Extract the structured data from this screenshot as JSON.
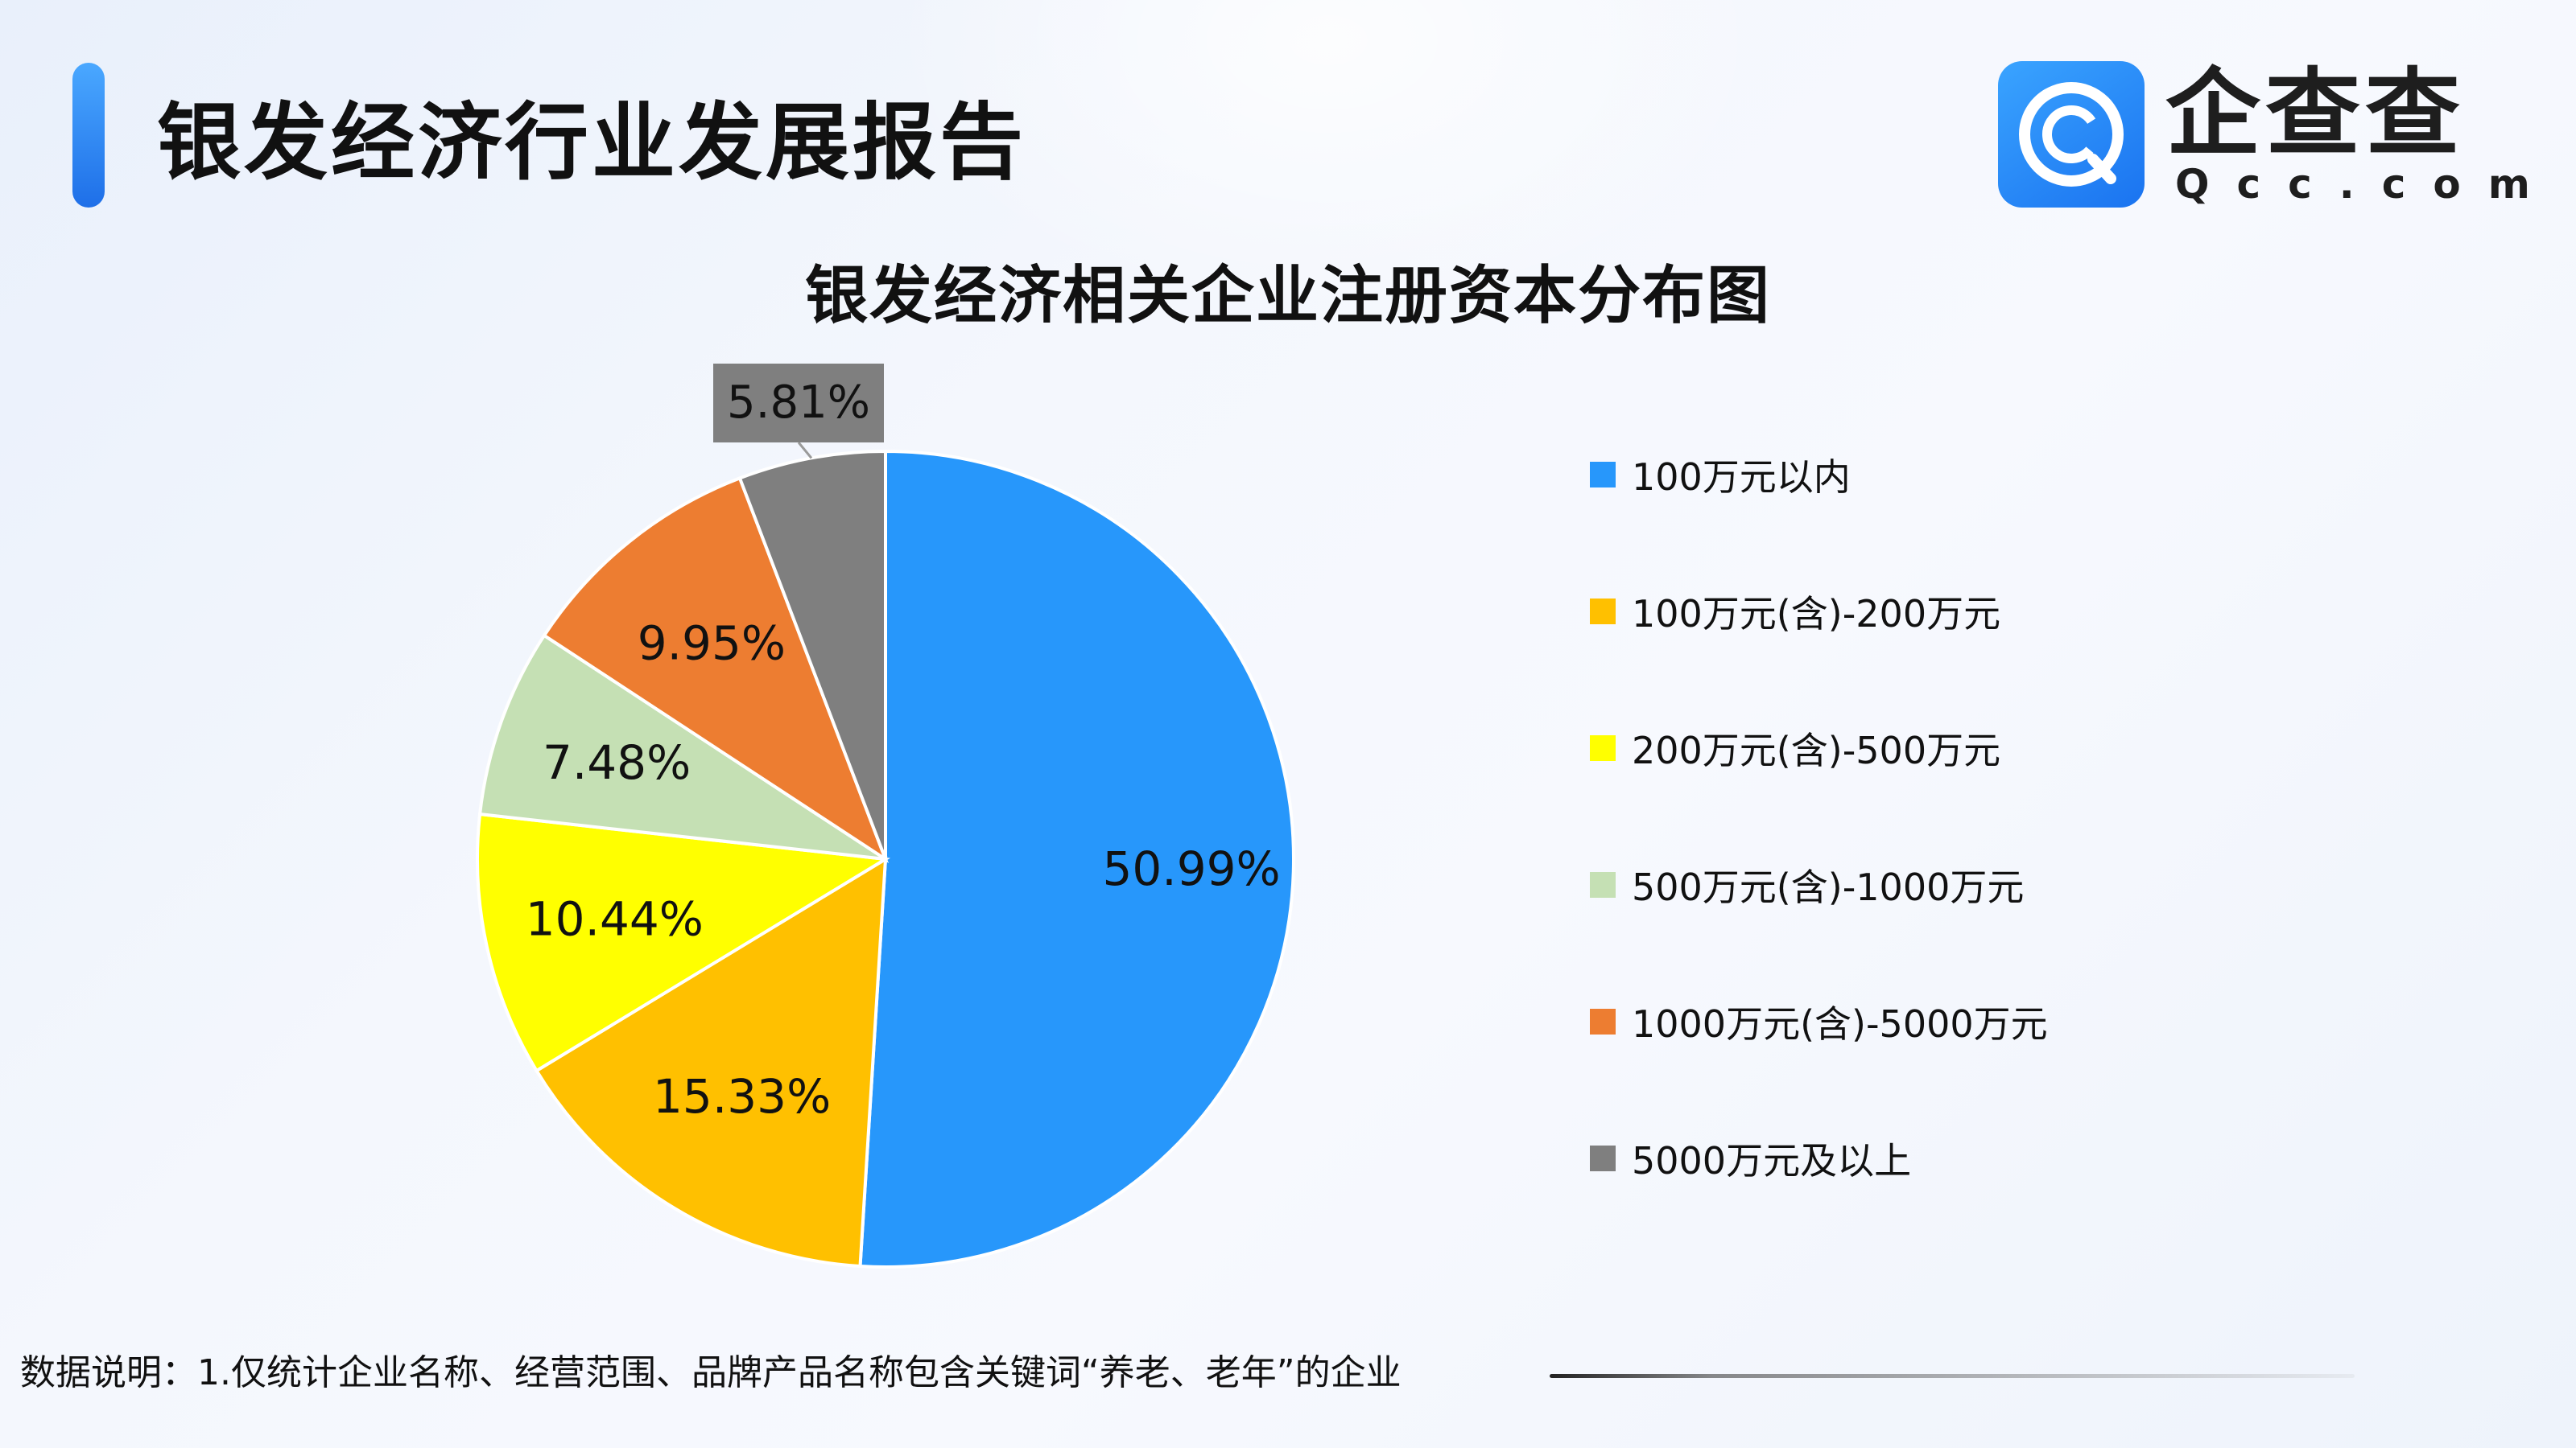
{
  "header": {
    "title": "银发经济行业发展报告"
  },
  "logo": {
    "cn": "企查查",
    "en": "Qcc.com",
    "icon": "qcc-logo-icon"
  },
  "chart_data": {
    "type": "pie",
    "title": "银发经济相关企业注册资本分布图",
    "legend_position": "right",
    "categories": [
      "100万元以内",
      "100万元(含)-200万元",
      "200万元(含)-500万元",
      "500万元(含)-1000万元",
      "1000万元(含)-5000万元",
      "5000万元及以上"
    ],
    "values": [
      50.99,
      15.33,
      10.44,
      7.48,
      9.95,
      5.81
    ],
    "labels": [
      "50.99%",
      "15.33%",
      "10.44%",
      "7.48%",
      "9.95%",
      "5.81%"
    ],
    "colors": [
      "#2797fb",
      "#ffc000",
      "#ffff00",
      "#c5e0b4",
      "#ed7d31",
      "#7f7f7f"
    ]
  },
  "footnote": {
    "text": "数据说明：1.仅统计企业名称、经营范围、品牌产品名称包含关键词“养老、老年”的企业"
  }
}
